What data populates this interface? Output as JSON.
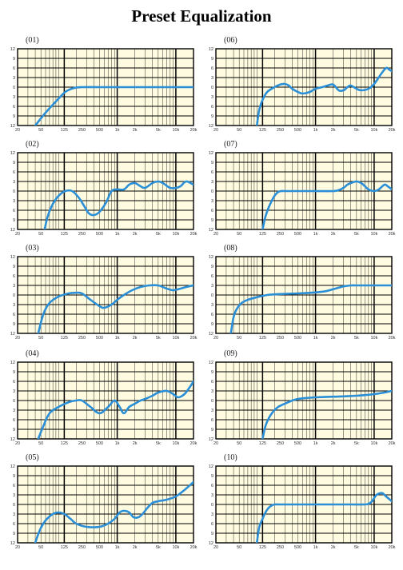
{
  "page": {
    "title": "Preset Equalization"
  },
  "axes": {
    "x_ticks": [
      "20",
      "50",
      "125",
      "250",
      "500",
      "1k",
      "2k",
      "5k",
      "10k",
      "20k"
    ],
    "y_ticks": [
      "12",
      "9",
      "6",
      "3",
      "0",
      "3",
      "6",
      "9",
      "12"
    ],
    "x_range_hz": [
      20,
      20000
    ],
    "y_range_db": [
      -12,
      12
    ],
    "grid": true,
    "x_scale": "log"
  },
  "colors": {
    "curve": "#2a8fd6",
    "background": "#fffbe0",
    "grid": "#000000"
  },
  "chart_data": [
    {
      "type": "line",
      "label": "(01)",
      "series": [
        {
          "x": [
            40,
            60,
            90,
            130,
            180,
            250,
            500,
            1000,
            2000,
            5000,
            10000,
            20000
          ],
          "y": [
            -12,
            -8,
            -4.5,
            -1.5,
            -0.3,
            0,
            0,
            0,
            0,
            0,
            0,
            0
          ]
        }
      ]
    },
    {
      "type": "line",
      "label": "(02)",
      "series": [
        {
          "x": [
            58,
            65,
            80,
            100,
            130,
            170,
            220,
            280,
            330,
            400,
            500,
            650,
            800,
            1000,
            1300,
            1600,
            2000,
            2500,
            3000,
            4000,
            5000,
            6000,
            8000,
            10000,
            12000,
            15000,
            20000
          ],
          "y": [
            -12,
            -8,
            -4,
            -1.5,
            0,
            0,
            -2,
            -5,
            -7,
            -7.5,
            -6.5,
            -3.5,
            0,
            0.5,
            0.5,
            2,
            2.5,
            1.5,
            1,
            2.5,
            3,
            2.5,
            1,
            1,
            1.5,
            3,
            2
          ]
        }
      ]
    },
    {
      "type": "line",
      "label": "(03)",
      "series": [
        {
          "x": [
            45,
            55,
            70,
            100,
            150,
            200,
            250,
            350,
            500,
            600,
            800,
            1000,
            1300,
            1800,
            2500,
            3500,
            5000,
            7000,
            9000,
            12000,
            15000,
            20000
          ],
          "y": [
            -12,
            -6,
            -2.5,
            -0.5,
            0.5,
            0.7,
            0.5,
            -1.5,
            -3.5,
            -4,
            -3,
            -1.5,
            0,
            1.5,
            2.5,
            3,
            3,
            2,
            1.5,
            2,
            2.5,
            3
          ]
        }
      ]
    },
    {
      "type": "line",
      "label": "(04)",
      "series": [
        {
          "x": [
            45,
            55,
            70,
            100,
            150,
            200,
            250,
            350,
            500,
            700,
            900,
            1100,
            1300,
            1600,
            2000,
            2500,
            3000,
            4000,
            5000,
            7000,
            9000,
            11000,
            14000,
            17000,
            20000
          ],
          "y": [
            -12,
            -8,
            -4,
            -2,
            -0.5,
            0,
            0,
            -2,
            -4,
            -2,
            0,
            -2,
            -4,
            -2,
            -1,
            0,
            0.5,
            1.5,
            2.5,
            3,
            2,
            1,
            2,
            4,
            6
          ]
        }
      ]
    },
    {
      "type": "line",
      "label": "(05)",
      "series": [
        {
          "x": [
            40,
            48,
            60,
            80,
            100,
            125,
            160,
            200,
            300,
            500,
            700,
            900,
            1100,
            1300,
            1600,
            1900,
            2300,
            2700,
            3300,
            4000,
            5000,
            7000,
            10000,
            14000,
            20000
          ],
          "y": [
            -12,
            -8,
            -5,
            -3,
            -2.5,
            -3,
            -4.5,
            -6,
            -7,
            -7,
            -6,
            -4.5,
            -2.5,
            -2,
            -2.5,
            -4,
            -4,
            -3,
            -1,
            0.5,
            1,
            1.5,
            2.5,
            4.5,
            7
          ]
        }
      ]
    },
    {
      "type": "line",
      "label": "(06)",
      "series": [
        {
          "x": [
            100,
            110,
            125,
            150,
            200,
            250,
            300,
            350,
            400,
            500,
            600,
            800,
            1000,
            1300,
            1600,
            2000,
            2500,
            3000,
            3500,
            4000,
            5000,
            6000,
            8000,
            10000,
            13000,
            16000,
            18000,
            20000
          ],
          "y": [
            -12,
            -7,
            -4,
            -1.5,
            0,
            0.8,
            1,
            0.5,
            -0.5,
            -1.5,
            -2,
            -1.5,
            -0.5,
            0,
            0.5,
            0.8,
            -1,
            -1,
            0,
            0.5,
            -0.5,
            -1,
            -0.5,
            1,
            4,
            6,
            5.5,
            5
          ]
        }
      ]
    },
    {
      "type": "line",
      "label": "(07)",
      "series": [
        {
          "x": [
            125,
            140,
            160,
            180,
            200,
            230,
            260,
            300,
            500,
            1000,
            2000,
            2500,
            3000,
            3500,
            4000,
            5000,
            6000,
            7000,
            8000,
            10000,
            12000,
            15000,
            17000,
            20000
          ],
          "y": [
            -12,
            -8,
            -5,
            -3,
            -1.5,
            -0.3,
            0,
            0,
            0,
            0,
            0,
            0.3,
            1,
            2,
            2.5,
            3,
            2.5,
            1.5,
            0.5,
            0,
            0.5,
            2,
            1.5,
            0.5
          ]
        }
      ]
    },
    {
      "type": "line",
      "label": "(08)",
      "series": [
        {
          "x": [
            36,
            40,
            45,
            55,
            70,
            100,
            150,
            250,
            500,
            1000,
            1500,
            2000,
            2500,
            3000,
            4000,
            5000,
            7000,
            10000,
            20000
          ],
          "y": [
            -12,
            -7,
            -4.5,
            -2.5,
            -1.5,
            -0.7,
            0,
            0.3,
            0.5,
            0.8,
            1.2,
            1.8,
            2.3,
            2.7,
            3,
            3,
            3,
            3,
            3
          ]
        }
      ]
    },
    {
      "type": "line",
      "label": "(09)",
      "series": [
        {
          "x": [
            125,
            140,
            160,
            180,
            200,
            230,
            260,
            300,
            400,
            500,
            700,
            1000,
            2000,
            3000,
            5000,
            7000,
            10000,
            15000,
            20000
          ],
          "y": [
            -12,
            -8,
            -5.5,
            -4,
            -3,
            -2,
            -1.5,
            -1,
            0,
            0.5,
            0.8,
            1,
            1.2,
            1.3,
            1.5,
            1.7,
            2,
            2.5,
            3
          ]
        }
      ]
    },
    {
      "type": "line",
      "label": "(10)",
      "series": [
        {
          "x": [
            100,
            110,
            125,
            140,
            160,
            180,
            200,
            230,
            260,
            300,
            500,
            1000,
            2000,
            4000,
            7000,
            8000,
            9000,
            10000,
            11000,
            12500,
            14000,
            16000,
            20000
          ],
          "y": [
            -12,
            -7,
            -4.5,
            -2.5,
            -1,
            -0.3,
            0,
            0,
            0,
            0,
            0,
            0,
            0,
            0,
            0,
            0.2,
            0.8,
            2,
            3,
            3.5,
            3.5,
            2.5,
            1
          ]
        }
      ]
    }
  ]
}
